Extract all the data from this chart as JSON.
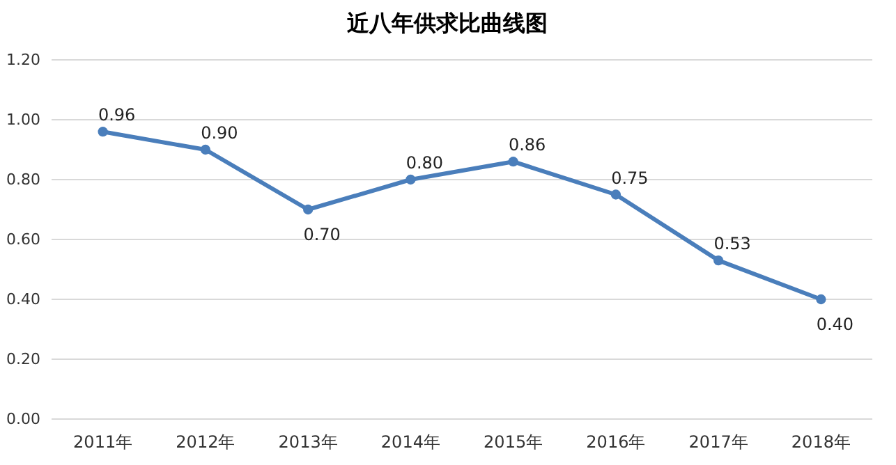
{
  "chart_data": {
    "type": "line",
    "title": "近八年供求比曲线图",
    "categories": [
      "2011年",
      "2012年",
      "2013年",
      "2014年",
      "2015年",
      "2016年",
      "2017年",
      "2018年"
    ],
    "values": [
      0.96,
      0.9,
      0.7,
      0.8,
      0.86,
      0.75,
      0.53,
      0.4
    ],
    "value_labels": [
      "0.96",
      "0.90",
      "0.70",
      "0.80",
      "0.86",
      "0.75",
      "0.53",
      "0.40"
    ],
    "color": "#4a7ebb",
    "marker": "circle",
    "line_style": "solid",
    "grid": "y",
    "ylim": [
      0,
      1.2
    ],
    "yticks": [
      {
        "value": 0,
        "label": "0.00"
      },
      {
        "value": 0.2,
        "label": "0.20"
      },
      {
        "value": 0.4,
        "label": "0.40"
      },
      {
        "value": 0.6,
        "label": "0.60"
      },
      {
        "value": 0.8,
        "label": "0.80"
      },
      {
        "value": 1,
        "label": "1.00"
      },
      {
        "value": 1.2,
        "label": "1.20"
      }
    ]
  }
}
